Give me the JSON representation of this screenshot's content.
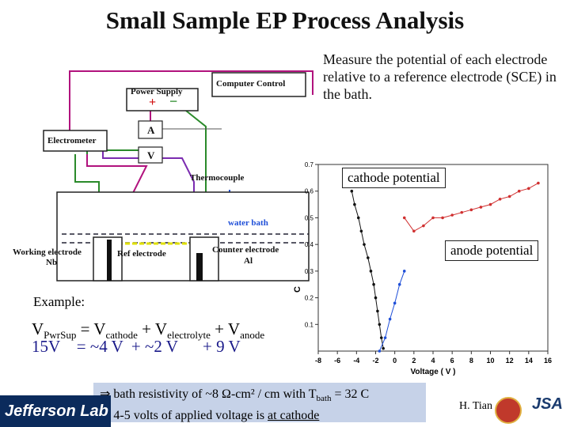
{
  "title": "Small Sample EP Process Analysis",
  "measure_text": "Measure the potential of each electrode relative to a reference electrode (SCE) in the bath.",
  "diagram": {
    "computer_control": "Computer Control",
    "power_supply": "Power Supply",
    "plus": "+",
    "minus": "−",
    "electrometer": "Electrometer",
    "ammeter": "A",
    "voltmeter": "V",
    "thermocouple": "Thermocouple",
    "water_bath": "water bath",
    "working_electrode_line1": "Working electrode",
    "working_electrode_line2": "Nb",
    "ref_electrode": "Ref electrode",
    "counter_electrode_line1": "Counter electrode",
    "counter_electrode_line2": "Al"
  },
  "callouts": {
    "cathode": "cathode potential",
    "anode": "anode potential"
  },
  "example": {
    "label": "Example:",
    "v": "V",
    "pwr_sub": "PwrSup",
    "eq_mid": " = V",
    "cathode_sub": "cathode",
    "plus_v": " + V",
    "electrolyte_sub": "electrolyte",
    "anode_sub": "anode",
    "values": "15V    = ~4 V  + ~2 V      + 9 V"
  },
  "banner": {
    "line1": "⇒ bath resistivity of ~8 Ω-cm² / cm with T",
    "line1_sub": "bath",
    "line1_end": " = 32 C",
    "line2_start": "⇒ 4-5 volts of applied voltage is ",
    "line2_underlined": "at cathode"
  },
  "footer": {
    "lab": "Jefferson Lab",
    "author": "H. Tian",
    "logo": "JSA"
  },
  "chart_data": {
    "type": "scatter",
    "xlabel": "Voltage ( V )",
    "ylabel": "C",
    "xlim": [
      -8,
      16
    ],
    "ylim": [
      0,
      0.7
    ],
    "x_ticks": [
      -8,
      -6,
      -4,
      -2,
      0,
      2,
      4,
      6,
      8,
      10,
      12,
      14,
      16
    ],
    "y_ticks": [
      0.1,
      0.2,
      0.3,
      0.4,
      0.5,
      0.6,
      0.7
    ],
    "series": [
      {
        "color": "#111111",
        "points": [
          [
            -4.5,
            0.6
          ],
          [
            -4.2,
            0.55
          ],
          [
            -3.8,
            0.5
          ],
          [
            -3.5,
            0.45
          ],
          [
            -3.2,
            0.4
          ],
          [
            -2.8,
            0.35
          ],
          [
            -2.5,
            0.3
          ],
          [
            -2.2,
            0.25
          ],
          [
            -2.0,
            0.2
          ],
          [
            -1.8,
            0.15
          ],
          [
            -1.6,
            0.1
          ],
          [
            -1.4,
            0.05
          ],
          [
            -1.2,
            0.01
          ]
        ]
      },
      {
        "color": "#1f4fd8",
        "points": [
          [
            -1.6,
            0.0
          ],
          [
            -1.0,
            0.05
          ],
          [
            -0.5,
            0.12
          ],
          [
            0,
            0.18
          ],
          [
            0.5,
            0.25
          ],
          [
            1,
            0.3
          ]
        ]
      },
      {
        "color": "#d03030",
        "points": [
          [
            1,
            0.5
          ],
          [
            2,
            0.45
          ],
          [
            3,
            0.47
          ],
          [
            4,
            0.5
          ],
          [
            5,
            0.5
          ],
          [
            6,
            0.51
          ],
          [
            7,
            0.52
          ],
          [
            8,
            0.53
          ],
          [
            9,
            0.54
          ],
          [
            10,
            0.55
          ],
          [
            11,
            0.57
          ],
          [
            12,
            0.58
          ],
          [
            13,
            0.6
          ],
          [
            14,
            0.61
          ],
          [
            15,
            0.63
          ]
        ]
      }
    ]
  }
}
